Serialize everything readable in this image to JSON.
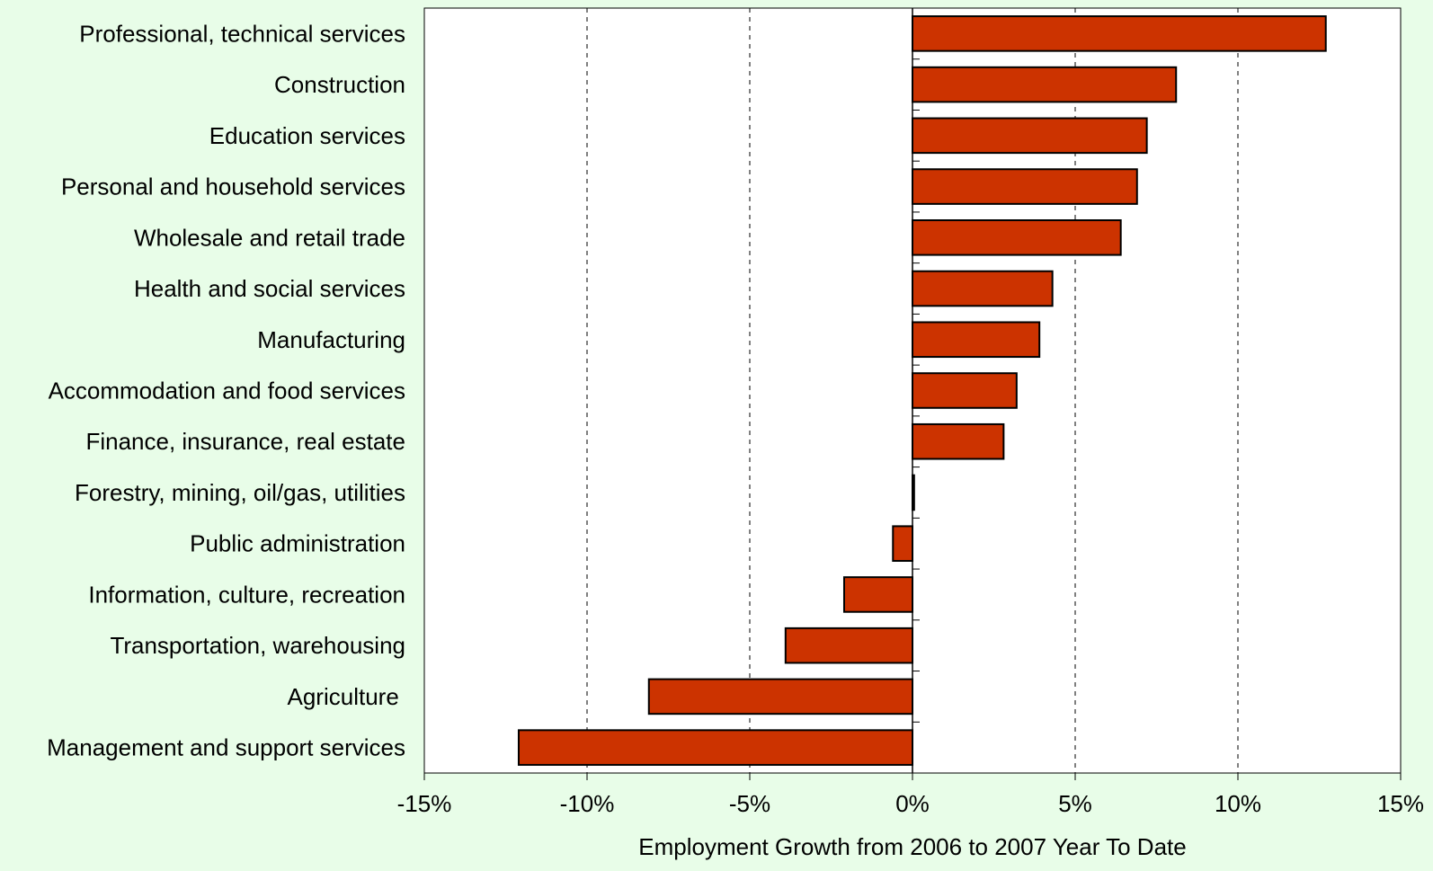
{
  "chart_data": {
    "type": "bar",
    "orientation": "horizontal",
    "categories": [
      "Professional, technical services",
      "Construction",
      "Education services",
      "Personal and household services",
      "Wholesale and retail trade",
      "Health and social services",
      "Manufacturing",
      "Accommodation and food services",
      "Finance, insurance, real estate",
      "Forestry, mining, oil/gas, utilities",
      "Public administration",
      "Information, culture, recreation",
      "Transportation, warehousing",
      "Agriculture ",
      "Management and support services"
    ],
    "values": [
      12.7,
      8.1,
      7.2,
      6.9,
      6.4,
      4.3,
      3.9,
      3.2,
      2.8,
      0.05,
      -0.6,
      -2.1,
      -3.9,
      -8.1,
      -12.1
    ],
    "xlabel": "Employment Growth from 2006 to 2007 Year To Date",
    "xlim": [
      -15,
      15
    ],
    "xticks": [
      -15,
      -10,
      -5,
      0,
      5,
      10,
      15
    ],
    "xtick_labels": [
      "-15%",
      "-10%",
      "-5%",
      "0%",
      "5%",
      "10%",
      "15%"
    ],
    "grid": "vertical dashed",
    "bar_color": "#cc3300",
    "background_color": "#e8fde8",
    "plot_background_color": "#ffffff"
  }
}
